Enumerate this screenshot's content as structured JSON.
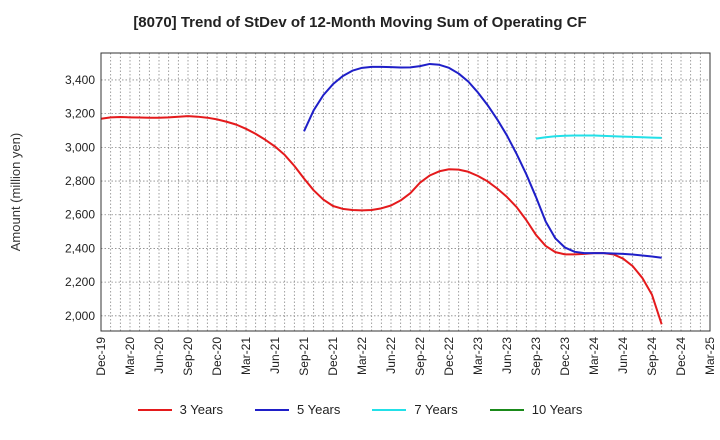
{
  "chart_data": {
    "type": "line",
    "title": "[8070]  Trend of StDev of 12-Month Moving Sum of Operating CF",
    "xlabel": "",
    "ylabel": "Amount (million yen)",
    "ylim": [
      1910,
      3560
    ],
    "yticks": [
      2000,
      2200,
      2400,
      2600,
      2800,
      3000,
      3200,
      3400
    ],
    "ytick_labels": [
      "2,000",
      "2,200",
      "2,400",
      "2,600",
      "2,800",
      "3,000",
      "3,200",
      "3,400"
    ],
    "xtick_labels": [
      "Dec-19",
      "Mar-20",
      "Jun-20",
      "Sep-20",
      "Dec-20",
      "Mar-21",
      "Jun-21",
      "Sep-21",
      "Dec-21",
      "Mar-22",
      "Jun-22",
      "Sep-22",
      "Dec-22",
      "Mar-23",
      "Jun-23",
      "Sep-23",
      "Dec-23",
      "Mar-24",
      "Jun-24",
      "Sep-24",
      "Dec-24",
      "Mar-25"
    ],
    "x_start": "Dec-19",
    "x_end": "Mar-25",
    "grid": true,
    "legend_position": "bottom",
    "series": [
      {
        "name": "3 Years",
        "color": "#e41a1c",
        "points": [
          [
            "Dec-19",
            3170
          ],
          [
            "Jan-20",
            3178
          ],
          [
            "Feb-20",
            3180
          ],
          [
            "Mar-20",
            3178
          ],
          [
            "Apr-20",
            3177
          ],
          [
            "May-20",
            3176
          ],
          [
            "Jun-20",
            3176
          ],
          [
            "Jul-20",
            3178
          ],
          [
            "Aug-20",
            3182
          ],
          [
            "Sep-20",
            3185
          ],
          [
            "Oct-20",
            3182
          ],
          [
            "Nov-20",
            3176
          ],
          [
            "Dec-20",
            3166
          ],
          [
            "Jan-21",
            3152
          ],
          [
            "Feb-21",
            3135
          ],
          [
            "Mar-21",
            3110
          ],
          [
            "Apr-21",
            3080
          ],
          [
            "May-21",
            3045
          ],
          [
            "Jun-21",
            3005
          ],
          [
            "Jul-21",
            2955
          ],
          [
            "Aug-21",
            2890
          ],
          [
            "Sep-21",
            2815
          ],
          [
            "Oct-21",
            2745
          ],
          [
            "Nov-21",
            2690
          ],
          [
            "Dec-21",
            2652
          ],
          [
            "Jan-22",
            2635
          ],
          [
            "Feb-22",
            2628
          ],
          [
            "Mar-22",
            2626
          ],
          [
            "Apr-22",
            2628
          ],
          [
            "May-22",
            2638
          ],
          [
            "Jun-22",
            2655
          ],
          [
            "Jul-22",
            2685
          ],
          [
            "Aug-22",
            2728
          ],
          [
            "Sep-22",
            2790
          ],
          [
            "Oct-22",
            2833
          ],
          [
            "Nov-22",
            2858
          ],
          [
            "Dec-22",
            2870
          ],
          [
            "Jan-23",
            2868
          ],
          [
            "Feb-23",
            2855
          ],
          [
            "Mar-23",
            2830
          ],
          [
            "Apr-23",
            2798
          ],
          [
            "May-23",
            2755
          ],
          [
            "Jun-23",
            2705
          ],
          [
            "Jul-23",
            2645
          ],
          [
            "Aug-23",
            2568
          ],
          [
            "Sep-23",
            2480
          ],
          [
            "Oct-23",
            2415
          ],
          [
            "Nov-23",
            2378
          ],
          [
            "Dec-23",
            2365
          ],
          [
            "Jan-24",
            2365
          ],
          [
            "Feb-24",
            2368
          ],
          [
            "Mar-24",
            2372
          ],
          [
            "Apr-24",
            2372
          ],
          [
            "May-24",
            2365
          ],
          [
            "Jun-24",
            2340
          ],
          [
            "Jul-24",
            2295
          ],
          [
            "Aug-24",
            2225
          ],
          [
            "Sep-24",
            2125
          ],
          [
            "Oct-24",
            1950
          ]
        ]
      },
      {
        "name": "5 Years",
        "color": "#1f1fc8",
        "points": [
          [
            "Sep-21",
            3095
          ],
          [
            "Oct-21",
            3220
          ],
          [
            "Nov-21",
            3310
          ],
          [
            "Dec-21",
            3375
          ],
          [
            "Jan-22",
            3423
          ],
          [
            "Feb-22",
            3455
          ],
          [
            "Mar-22",
            3472
          ],
          [
            "Apr-22",
            3478
          ],
          [
            "May-22",
            3478
          ],
          [
            "Jun-22",
            3476
          ],
          [
            "Jul-22",
            3474
          ],
          [
            "Aug-22",
            3475
          ],
          [
            "Sep-22",
            3482
          ],
          [
            "Oct-22",
            3495
          ],
          [
            "Nov-22",
            3490
          ],
          [
            "Dec-22",
            3472
          ],
          [
            "Jan-23",
            3438
          ],
          [
            "Feb-23",
            3390
          ],
          [
            "Mar-23",
            3325
          ],
          [
            "Apr-23",
            3250
          ],
          [
            "May-23",
            3165
          ],
          [
            "Jun-23",
            3070
          ],
          [
            "Jul-23",
            2960
          ],
          [
            "Aug-23",
            2840
          ],
          [
            "Sep-23",
            2705
          ],
          [
            "Oct-23",
            2560
          ],
          [
            "Nov-23",
            2460
          ],
          [
            "Dec-23",
            2405
          ],
          [
            "Jan-24",
            2380
          ],
          [
            "Feb-24",
            2372
          ],
          [
            "Mar-24",
            2372
          ],
          [
            "Apr-24",
            2372
          ],
          [
            "May-24",
            2370
          ],
          [
            "Jun-24",
            2368
          ],
          [
            "Jul-24",
            2364
          ],
          [
            "Aug-24",
            2358
          ],
          [
            "Sep-24",
            2352
          ],
          [
            "Oct-24",
            2345
          ]
        ]
      },
      {
        "name": "7 Years",
        "color": "#22e0e8",
        "points": [
          [
            "Sep-23",
            3052
          ],
          [
            "Oct-23",
            3060
          ],
          [
            "Nov-23",
            3066
          ],
          [
            "Dec-23",
            3069
          ],
          [
            "Jan-24",
            3070
          ],
          [
            "Feb-24",
            3070
          ],
          [
            "Mar-24",
            3070
          ],
          [
            "Apr-24",
            3068
          ],
          [
            "May-24",
            3066
          ],
          [
            "Jun-24",
            3064
          ],
          [
            "Jul-24",
            3062
          ],
          [
            "Aug-24",
            3060
          ],
          [
            "Sep-24",
            3058
          ],
          [
            "Oct-24",
            3056
          ]
        ]
      },
      {
        "name": "10 Years",
        "color": "#1a8a1a",
        "points": []
      }
    ]
  }
}
